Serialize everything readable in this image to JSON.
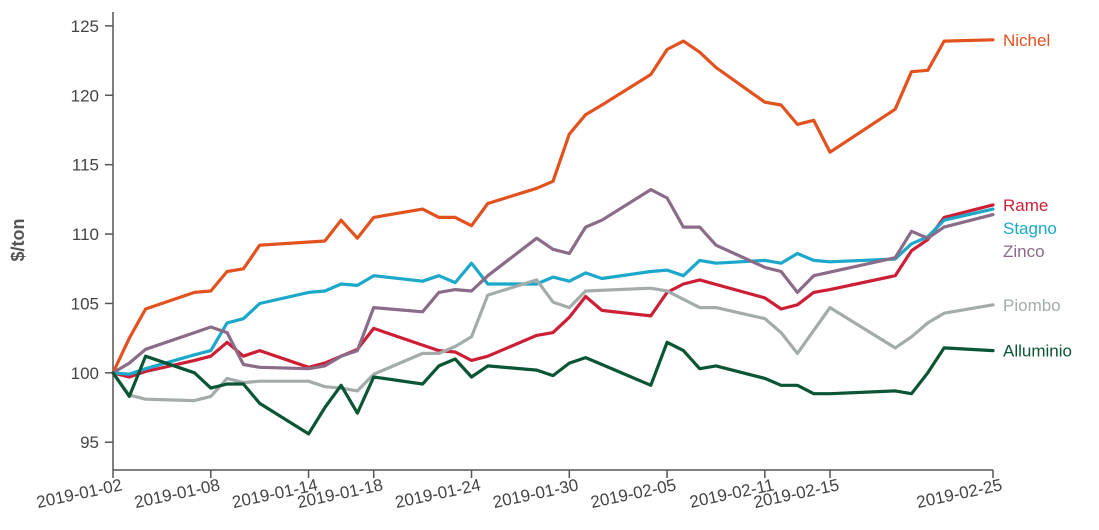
{
  "chart_data": {
    "type": "line",
    "ylabel": "$/ton",
    "xlabel": "",
    "title": "",
    "ylim": [
      93,
      126
    ],
    "xlim": [
      "2019-01-02",
      "2019-02-25"
    ],
    "yticks": [
      95,
      100,
      105,
      110,
      115,
      120,
      125
    ],
    "xticks": [
      "2019-01-02",
      "2019-01-08",
      "2019-01-14",
      "2019-01-18",
      "2019-01-24",
      "2019-01-30",
      "2019-02-05",
      "2019-02-11",
      "2019-02-15",
      "2019-02-25"
    ],
    "grid": false,
    "legend": "inline labels at right end of lines",
    "series": [
      {
        "name": "Nichel",
        "color": "#e2521e",
        "points": [
          [
            "2019-01-02",
            100.0
          ],
          [
            "2019-01-03",
            102.5
          ],
          [
            "2019-01-04",
            104.6
          ],
          [
            "2019-01-07",
            105.8
          ],
          [
            "2019-01-08",
            105.9
          ],
          [
            "2019-01-09",
            107.3
          ],
          [
            "2019-01-10",
            107.5
          ],
          [
            "2019-01-11",
            109.2
          ],
          [
            "2019-01-15",
            109.5
          ],
          [
            "2019-01-16",
            111.0
          ],
          [
            "2019-01-17",
            109.7
          ],
          [
            "2019-01-18",
            111.2
          ],
          [
            "2019-01-21",
            111.8
          ],
          [
            "2019-01-22",
            111.2
          ],
          [
            "2019-01-23",
            111.2
          ],
          [
            "2019-01-24",
            110.6
          ],
          [
            "2019-01-25",
            112.2
          ],
          [
            "2019-01-28",
            113.3
          ],
          [
            "2019-01-29",
            113.8
          ],
          [
            "2019-01-30",
            117.2
          ],
          [
            "2019-01-31",
            118.6
          ],
          [
            "2019-02-01",
            119.3
          ],
          [
            "2019-02-04",
            121.5
          ],
          [
            "2019-02-05",
            123.3
          ],
          [
            "2019-02-06",
            123.9
          ],
          [
            "2019-02-07",
            123.1
          ],
          [
            "2019-02-08",
            122.0
          ],
          [
            "2019-02-11",
            119.5
          ],
          [
            "2019-02-12",
            119.3
          ],
          [
            "2019-02-13",
            117.9
          ],
          [
            "2019-02-14",
            118.2
          ],
          [
            "2019-02-15",
            115.9
          ],
          [
            "2019-02-19",
            119.0
          ],
          [
            "2019-02-20",
            121.7
          ],
          [
            "2019-02-21",
            121.8
          ],
          [
            "2019-02-22",
            123.9
          ],
          [
            "2019-02-25",
            124.0
          ]
        ]
      },
      {
        "name": "Rame",
        "color": "#cc1f36",
        "points": [
          [
            "2019-01-02",
            100.0
          ],
          [
            "2019-01-03",
            99.7
          ],
          [
            "2019-01-04",
            100.1
          ],
          [
            "2019-01-07",
            100.9
          ],
          [
            "2019-01-08",
            101.2
          ],
          [
            "2019-01-09",
            102.2
          ],
          [
            "2019-01-10",
            101.2
          ],
          [
            "2019-01-11",
            101.6
          ],
          [
            "2019-01-14",
            100.4
          ],
          [
            "2019-01-15",
            100.7
          ],
          [
            "2019-01-16",
            101.2
          ],
          [
            "2019-01-17",
            101.7
          ],
          [
            "2019-01-18",
            103.2
          ],
          [
            "2019-01-21",
            102.0
          ],
          [
            "2019-01-22",
            101.6
          ],
          [
            "2019-01-23",
            101.5
          ],
          [
            "2019-01-24",
            100.9
          ],
          [
            "2019-01-25",
            101.2
          ],
          [
            "2019-01-28",
            102.7
          ],
          [
            "2019-01-29",
            102.9
          ],
          [
            "2019-01-30",
            104.0
          ],
          [
            "2019-01-31",
            105.5
          ],
          [
            "2019-02-01",
            104.5
          ],
          [
            "2019-02-04",
            104.1
          ],
          [
            "2019-02-05",
            105.8
          ],
          [
            "2019-02-06",
            106.4
          ],
          [
            "2019-02-07",
            106.7
          ],
          [
            "2019-02-11",
            105.4
          ],
          [
            "2019-02-12",
            104.6
          ],
          [
            "2019-02-13",
            104.9
          ],
          [
            "2019-02-14",
            105.8
          ],
          [
            "2019-02-15",
            106.0
          ],
          [
            "2019-02-19",
            107.0
          ],
          [
            "2019-02-20",
            108.8
          ],
          [
            "2019-02-21",
            109.6
          ],
          [
            "2019-02-22",
            111.2
          ],
          [
            "2019-02-25",
            112.1
          ]
        ]
      },
      {
        "name": "Stagno",
        "color": "#1ba8cb",
        "points": [
          [
            "2019-01-02",
            100.0
          ],
          [
            "2019-01-03",
            99.9
          ],
          [
            "2019-01-04",
            100.3
          ],
          [
            "2019-01-07",
            101.3
          ],
          [
            "2019-01-08",
            101.6
          ],
          [
            "2019-01-09",
            103.6
          ],
          [
            "2019-01-10",
            103.9
          ],
          [
            "2019-01-11",
            105.0
          ],
          [
            "2019-01-14",
            105.8
          ],
          [
            "2019-01-15",
            105.9
          ],
          [
            "2019-01-16",
            106.4
          ],
          [
            "2019-01-17",
            106.3
          ],
          [
            "2019-01-18",
            107.0
          ],
          [
            "2019-01-21",
            106.6
          ],
          [
            "2019-01-22",
            107.0
          ],
          [
            "2019-01-23",
            106.5
          ],
          [
            "2019-01-24",
            107.9
          ],
          [
            "2019-01-25",
            106.4
          ],
          [
            "2019-01-28",
            106.4
          ],
          [
            "2019-01-29",
            106.9
          ],
          [
            "2019-01-30",
            106.6
          ],
          [
            "2019-01-31",
            107.2
          ],
          [
            "2019-02-01",
            106.8
          ],
          [
            "2019-02-04",
            107.3
          ],
          [
            "2019-02-05",
            107.4
          ],
          [
            "2019-02-06",
            107.0
          ],
          [
            "2019-02-07",
            108.1
          ],
          [
            "2019-02-08",
            107.9
          ],
          [
            "2019-02-11",
            108.1
          ],
          [
            "2019-02-12",
            107.9
          ],
          [
            "2019-02-13",
            108.6
          ],
          [
            "2019-02-14",
            108.1
          ],
          [
            "2019-02-15",
            108.0
          ],
          [
            "2019-02-19",
            108.2
          ],
          [
            "2019-02-20",
            109.3
          ],
          [
            "2019-02-21",
            109.8
          ],
          [
            "2019-02-22",
            111.0
          ],
          [
            "2019-02-25",
            111.8
          ]
        ]
      },
      {
        "name": "Zinco",
        "color": "#8a6b88",
        "points": [
          [
            "2019-01-02",
            100.0
          ],
          [
            "2019-01-03",
            100.7
          ],
          [
            "2019-01-04",
            101.7
          ],
          [
            "2019-01-07",
            102.9
          ],
          [
            "2019-01-08",
            103.3
          ],
          [
            "2019-01-09",
            102.9
          ],
          [
            "2019-01-10",
            100.6
          ],
          [
            "2019-01-11",
            100.4
          ],
          [
            "2019-01-14",
            100.3
          ],
          [
            "2019-01-15",
            100.5
          ],
          [
            "2019-01-16",
            101.2
          ],
          [
            "2019-01-17",
            101.6
          ],
          [
            "2019-01-18",
            104.7
          ],
          [
            "2019-01-21",
            104.4
          ],
          [
            "2019-01-22",
            105.8
          ],
          [
            "2019-01-23",
            106.0
          ],
          [
            "2019-01-24",
            105.9
          ],
          [
            "2019-01-25",
            107.0
          ],
          [
            "2019-01-28",
            109.7
          ],
          [
            "2019-01-29",
            108.9
          ],
          [
            "2019-01-30",
            108.6
          ],
          [
            "2019-01-31",
            110.5
          ],
          [
            "2019-02-01",
            111.0
          ],
          [
            "2019-02-04",
            113.2
          ],
          [
            "2019-02-05",
            112.6
          ],
          [
            "2019-02-06",
            110.5
          ],
          [
            "2019-02-07",
            110.5
          ],
          [
            "2019-02-08",
            109.2
          ],
          [
            "2019-02-11",
            107.6
          ],
          [
            "2019-02-12",
            107.3
          ],
          [
            "2019-02-13",
            105.8
          ],
          [
            "2019-02-14",
            107.0
          ],
          [
            "2019-02-19",
            108.3
          ],
          [
            "2019-02-20",
            110.2
          ],
          [
            "2019-02-21",
            109.7
          ],
          [
            "2019-02-22",
            110.5
          ],
          [
            "2019-02-25",
            111.4
          ]
        ]
      },
      {
        "name": "Piombo",
        "color": "#a3acaa",
        "points": [
          [
            "2019-01-02",
            100.0
          ],
          [
            "2019-01-03",
            98.4
          ],
          [
            "2019-01-04",
            98.1
          ],
          [
            "2019-01-07",
            98.0
          ],
          [
            "2019-01-08",
            98.3
          ],
          [
            "2019-01-09",
            99.6
          ],
          [
            "2019-01-10",
            99.3
          ],
          [
            "2019-01-11",
            99.4
          ],
          [
            "2019-01-14",
            99.4
          ],
          [
            "2019-01-15",
            99.0
          ],
          [
            "2019-01-16",
            98.9
          ],
          [
            "2019-01-17",
            98.7
          ],
          [
            "2019-01-18",
            99.9
          ],
          [
            "2019-01-21",
            101.4
          ],
          [
            "2019-01-22",
            101.4
          ],
          [
            "2019-01-23",
            101.9
          ],
          [
            "2019-01-24",
            102.6
          ],
          [
            "2019-01-25",
            105.6
          ],
          [
            "2019-01-28",
            106.7
          ],
          [
            "2019-01-29",
            105.1
          ],
          [
            "2019-01-30",
            104.7
          ],
          [
            "2019-01-31",
            105.9
          ],
          [
            "2019-02-04",
            106.1
          ],
          [
            "2019-02-05",
            105.9
          ],
          [
            "2019-02-06",
            105.3
          ],
          [
            "2019-02-07",
            104.7
          ],
          [
            "2019-02-08",
            104.7
          ],
          [
            "2019-02-11",
            103.9
          ],
          [
            "2019-02-12",
            102.9
          ],
          [
            "2019-02-13",
            101.4
          ],
          [
            "2019-02-15",
            104.7
          ],
          [
            "2019-02-19",
            101.8
          ],
          [
            "2019-02-20",
            102.6
          ],
          [
            "2019-02-21",
            103.6
          ],
          [
            "2019-02-22",
            104.3
          ],
          [
            "2019-02-25",
            104.9
          ]
        ]
      },
      {
        "name": "Alluminio",
        "color": "#0a5533",
        "points": [
          [
            "2019-01-02",
            100.0
          ],
          [
            "2019-01-03",
            98.3
          ],
          [
            "2019-01-04",
            101.2
          ],
          [
            "2019-01-07",
            100.0
          ],
          [
            "2019-01-08",
            98.9
          ],
          [
            "2019-01-09",
            99.2
          ],
          [
            "2019-01-10",
            99.2
          ],
          [
            "2019-01-11",
            97.8
          ],
          [
            "2019-01-14",
            95.6
          ],
          [
            "2019-01-15",
            97.5
          ],
          [
            "2019-01-16",
            99.1
          ],
          [
            "2019-01-17",
            97.1
          ],
          [
            "2019-01-18",
            99.7
          ],
          [
            "2019-01-21",
            99.2
          ],
          [
            "2019-01-22",
            100.5
          ],
          [
            "2019-01-23",
            101.0
          ],
          [
            "2019-01-24",
            99.7
          ],
          [
            "2019-01-25",
            100.5
          ],
          [
            "2019-01-28",
            100.2
          ],
          [
            "2019-01-29",
            99.8
          ],
          [
            "2019-01-30",
            100.7
          ],
          [
            "2019-01-31",
            101.1
          ],
          [
            "2019-02-01",
            100.6
          ],
          [
            "2019-02-04",
            99.1
          ],
          [
            "2019-02-05",
            102.2
          ],
          [
            "2019-02-06",
            101.6
          ],
          [
            "2019-02-07",
            100.3
          ],
          [
            "2019-02-08",
            100.5
          ],
          [
            "2019-02-11",
            99.6
          ],
          [
            "2019-02-12",
            99.1
          ],
          [
            "2019-02-13",
            99.1
          ],
          [
            "2019-02-14",
            98.5
          ],
          [
            "2019-02-15",
            98.5
          ],
          [
            "2019-02-19",
            98.7
          ],
          [
            "2019-02-20",
            98.5
          ],
          [
            "2019-02-21",
            100.0
          ],
          [
            "2019-02-22",
            101.8
          ],
          [
            "2019-02-25",
            101.6
          ]
        ]
      }
    ]
  }
}
